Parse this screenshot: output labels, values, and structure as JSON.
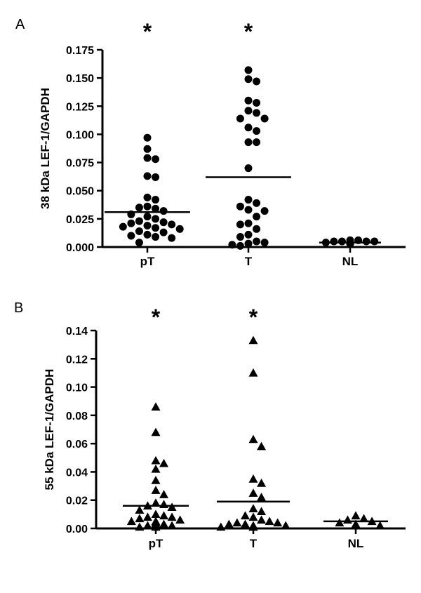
{
  "chart_data": [
    {
      "panel_label": "A",
      "type": "scatter",
      "marker": "circle",
      "ylabel": "38 kDa LEF-1/GAPDH",
      "ylim": [
        0,
        0.175
      ],
      "yticks": [
        "0.000",
        "0.025",
        "0.050",
        "0.075",
        "0.100",
        "0.125",
        "0.150",
        "0.175"
      ],
      "categories": [
        "pT",
        "T",
        "NL"
      ],
      "significance": [
        "*",
        "*",
        ""
      ],
      "means": [
        0.031,
        0.062,
        0.004
      ],
      "groups": [
        {
          "name": "pT",
          "values": [
            0.097,
            0.087,
            0.079,
            0.078,
            0.063,
            0.062,
            0.044,
            0.042,
            0.036,
            0.035,
            0.034,
            0.032,
            0.029,
            0.027,
            0.025,
            0.023,
            0.022,
            0.021,
            0.02,
            0.019,
            0.018,
            0.017,
            0.016,
            0.014,
            0.013,
            0.011,
            0.01,
            0.009,
            0.008,
            0.004
          ]
        },
        {
          "name": "T",
          "values": [
            0.157,
            0.149,
            0.147,
            0.13,
            0.128,
            0.121,
            0.119,
            0.114,
            0.114,
            0.106,
            0.103,
            0.093,
            0.093,
            0.07,
            0.042,
            0.039,
            0.036,
            0.033,
            0.032,
            0.027,
            0.021,
            0.02,
            0.016,
            0.011,
            0.009,
            0.005,
            0.004,
            0.003,
            0.002,
            0.001
          ]
        },
        {
          "name": "NL",
          "values": [
            0.006,
            0.006,
            0.005,
            0.005,
            0.005,
            0.005,
            0.004,
            0.004,
            0.004,
            0.004,
            0.004,
            0.003,
            0.003,
            0.003,
            0.003
          ]
        }
      ]
    },
    {
      "panel_label": "B",
      "type": "scatter",
      "marker": "triangle",
      "ylabel": "55 kDa LEF-1/GAPDH",
      "ylim": [
        0,
        0.14
      ],
      "yticks": [
        "0.00",
        "0.02",
        "0.04",
        "0.06",
        "0.08",
        "0.10",
        "0.12",
        "0.14"
      ],
      "categories": [
        "pT",
        "T",
        "NL"
      ],
      "significance": [
        "*",
        "*",
        ""
      ],
      "means": [
        0.016,
        0.019,
        0.005
      ],
      "groups": [
        {
          "name": "pT",
          "values": [
            0.086,
            0.068,
            0.048,
            0.046,
            0.042,
            0.034,
            0.027,
            0.024,
            0.018,
            0.017,
            0.016,
            0.015,
            0.013,
            0.01,
            0.009,
            0.008,
            0.008,
            0.007,
            0.006,
            0.005,
            0.005,
            0.004,
            0.004,
            0.003,
            0.003,
            0.002,
            0.002,
            0.001,
            0.001,
            0.001
          ]
        },
        {
          "name": "T",
          "values": [
            0.133,
            0.11,
            0.063,
            0.058,
            0.035,
            0.032,
            0.025,
            0.022,
            0.014,
            0.012,
            0.009,
            0.008,
            0.006,
            0.005,
            0.004,
            0.004,
            0.003,
            0.003,
            0.002,
            0.002,
            0.001,
            0.001,
            0.001,
            0.001
          ]
        },
        {
          "name": "NL",
          "values": [
            0.009,
            0.007,
            0.006,
            0.005,
            0.004,
            0.003,
            0.002
          ]
        }
      ]
    }
  ]
}
